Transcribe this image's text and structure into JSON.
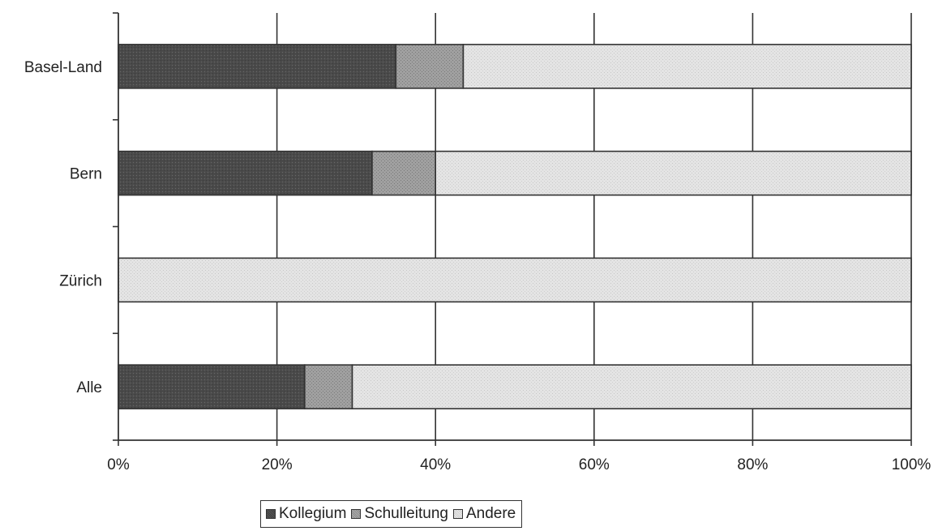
{
  "chart_data": {
    "type": "bar",
    "orientation": "horizontal",
    "stacked": true,
    "percent_scale": true,
    "categories": [
      "Basel-Land",
      "Bern",
      "Zürich",
      "Alle"
    ],
    "series": [
      {
        "name": "Kollegium",
        "values": [
          35,
          32,
          0,
          23.5
        ]
      },
      {
        "name": "Schulleitung",
        "values": [
          8.5,
          8,
          0,
          6
        ]
      },
      {
        "name": "Andere",
        "values": [
          56.5,
          60,
          100,
          70.5
        ]
      }
    ],
    "x_ticks": [
      "0%",
      "20%",
      "40%",
      "60%",
      "80%",
      "100%"
    ],
    "xlim": [
      0,
      100
    ],
    "grid": true,
    "legend": "bottom",
    "colors": {
      "Kollegium": "#4a4a4a",
      "Schulleitung": "#9c9c9c",
      "Andere": "#e0e0e0",
      "grid": "#333333",
      "bar_outline": "#333333"
    }
  }
}
